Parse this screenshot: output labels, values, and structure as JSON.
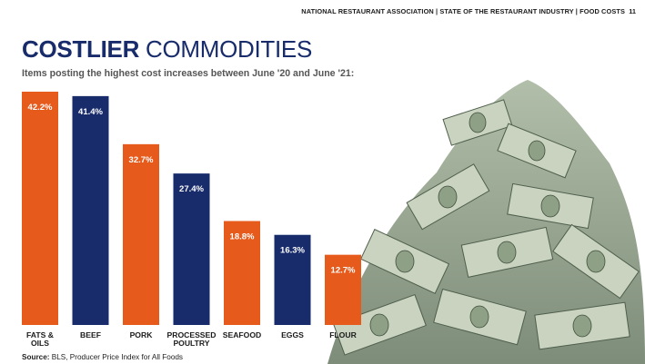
{
  "header": {
    "running_title": "NATIONAL RESTAURANT ASSOCIATION | STATE OF THE RESTAURANT INDUSTRY | FOOD COSTS",
    "page_number": "11"
  },
  "title": {
    "bold": "COSTLIER",
    "rest": " COMMODITIES"
  },
  "subtitle": "Items posting the highest cost increases between June '20 and June '21:",
  "source": {
    "label": "Source:",
    "text": " BLS, Producer Price Index for All Foods"
  },
  "illustration": {
    "icon": "money-pile-icon"
  },
  "colors": {
    "orange": "#e65a1c",
    "navy": "#182b6b",
    "label_text": "#ffffff",
    "category_text": "#1a1a1a"
  },
  "chart_data": {
    "type": "bar",
    "categories": [
      [
        "FATS &",
        "OILS"
      ],
      [
        "BEEF"
      ],
      [
        "PORK"
      ],
      [
        "PROCESSED",
        "POULTRY"
      ],
      [
        "SEAFOOD"
      ],
      [
        "EGGS"
      ],
      [
        "FLOUR"
      ]
    ],
    "values": [
      42.2,
      41.4,
      32.7,
      27.4,
      18.8,
      16.3,
      12.7
    ],
    "value_labels": [
      "42.2%",
      "41.4%",
      "32.7%",
      "27.4%",
      "18.8%",
      "16.3%",
      "12.7%"
    ],
    "bar_colors": [
      "orange",
      "navy",
      "orange",
      "navy",
      "orange",
      "navy",
      "orange"
    ],
    "ylim": [
      0,
      42.2
    ],
    "title": "",
    "xlabel": "",
    "ylabel": "",
    "grid": false
  }
}
